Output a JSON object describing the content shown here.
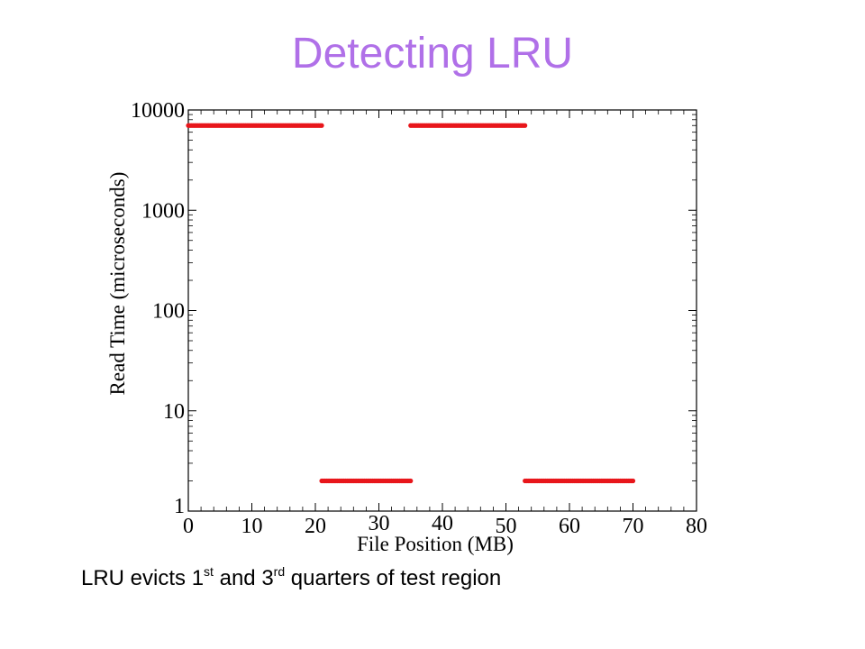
{
  "slide": {
    "title": "Detecting LRU",
    "title_color": "#b070e8",
    "caption": {
      "part1": "LRU evicts 1",
      "sup1": "st",
      "part2": " and 3",
      "sup2": "rd",
      "part3": " quarters of test region"
    }
  },
  "chart_data": {
    "type": "scatter",
    "title": "",
    "xlabel": "File Position (MB)",
    "ylabel": "Read Time (microseconds)",
    "xlim": [
      0,
      80
    ],
    "ylim": [
      1,
      10000
    ],
    "y_scale": "log",
    "grid": false,
    "x_ticks": [
      {
        "value": 0,
        "label": "0"
      },
      {
        "value": 10,
        "label": "10"
      },
      {
        "value": 20,
        "label": "20"
      },
      {
        "value": 30,
        "label": "30"
      },
      {
        "value": 40,
        "label": "40"
      },
      {
        "value": 50,
        "label": "50"
      },
      {
        "value": 60,
        "label": "60"
      },
      {
        "value": 70,
        "label": "70"
      },
      {
        "value": 80,
        "label": "80"
      }
    ],
    "y_ticks": [
      {
        "value": 1,
        "label": "1"
      },
      {
        "value": 10,
        "label": "10"
      },
      {
        "value": 100,
        "label": "100"
      },
      {
        "value": 1000,
        "label": "1000"
      },
      {
        "value": 10000,
        "label": "10000"
      }
    ],
    "series_color": "#e8161b",
    "segments": [
      {
        "x_start": 0,
        "x_end": 21,
        "y": 7000
      },
      {
        "x_start": 21,
        "x_end": 35,
        "y": 2
      },
      {
        "x_start": 35,
        "x_end": 53,
        "y": 7000
      },
      {
        "x_start": 53,
        "x_end": 70,
        "y": 2
      }
    ]
  }
}
